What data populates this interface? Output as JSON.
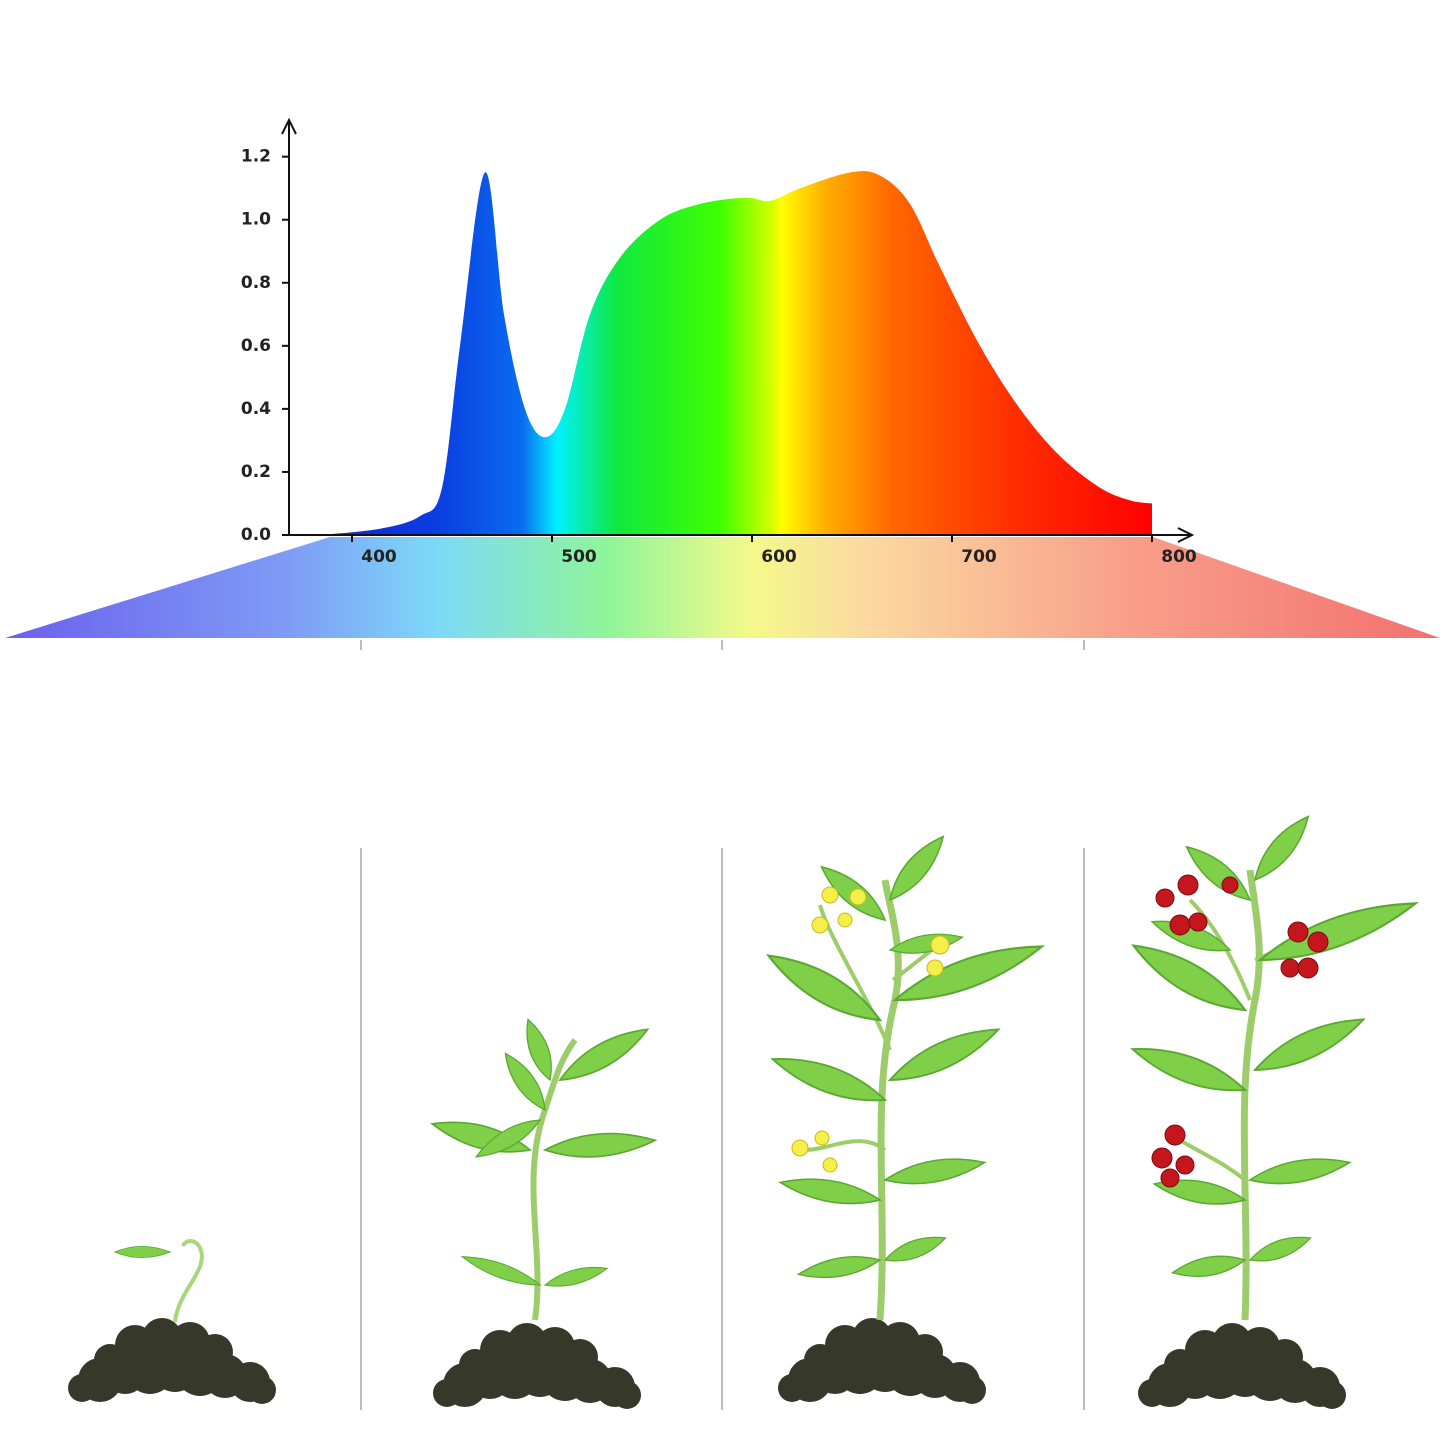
{
  "chart_data": {
    "type": "area",
    "x": [
      384,
      414,
      434,
      445,
      454,
      466.5,
      476,
      486.5,
      496.5,
      506.5,
      519,
      534,
      554,
      574,
      596.5,
      609,
      624,
      649,
      664,
      679,
      694,
      714,
      734,
      754,
      774,
      789,
      800
    ],
    "values": [
      0.0,
      0.02,
      0.06,
      0.15,
      0.6,
      1.15,
      0.7,
      0.4,
      0.31,
      0.4,
      0.7,
      0.88,
      1.0,
      1.05,
      1.07,
      1.06,
      1.1,
      1.15,
      1.14,
      1.05,
      0.85,
      0.6,
      0.4,
      0.25,
      0.15,
      0.11,
      0.1
    ],
    "xlim": [
      368.5,
      819
    ],
    "xticks": [
      400,
      500,
      600,
      700,
      800
    ],
    "ylim": [
      0,
      1.31
    ],
    "yticks": [
      {
        "value": 0,
        "label": "0.0"
      },
      0.2,
      0.4,
      0.6,
      0.8,
      {
        "value": 1,
        "label": "1.0"
      },
      1.2
    ]
  }
}
